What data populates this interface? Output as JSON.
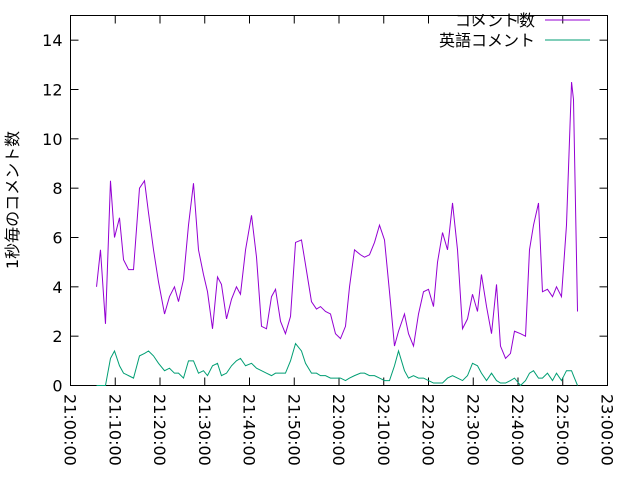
{
  "chart_data": {
    "type": "line",
    "ylabel": "1秒毎のコメント数",
    "x": [
      "21:05:49",
      "21:06:42",
      "21:07:49",
      "21:08:56",
      "21:09:50",
      "21:10:57",
      "21:11:51",
      "21:12:58",
      "21:14:05",
      "21:15:25",
      "21:16:32",
      "21:17:26",
      "21:18:33",
      "21:19:40",
      "21:21:01",
      "21:22:07",
      "21:23:14",
      "21:24:08",
      "21:25:15",
      "21:26:22",
      "21:27:29",
      "21:28:36",
      "21:29:43",
      "21:30:37",
      "21:31:44",
      "21:32:51",
      "21:33:44",
      "21:34:52",
      "21:35:59",
      "21:37:05",
      "21:37:59",
      "21:39:07",
      "21:40:27",
      "21:41:34",
      "21:42:41",
      "21:43:48",
      "21:44:55",
      "21:45:49",
      "21:46:56",
      "21:48:02",
      "21:49:10",
      "21:50:17",
      "21:51:37",
      "21:52:31",
      "21:53:51",
      "21:54:58",
      "21:55:52",
      "21:56:59",
      "21:58:06",
      "21:59:13",
      "22:00:20",
      "22:01:27",
      "22:02:21",
      "22:03:28",
      "22:04:48",
      "22:05:42",
      "22:06:49",
      "22:07:56",
      "22:09:03",
      "22:10:10",
      "22:11:17",
      "22:12:24",
      "22:13:18",
      "22:14:38",
      "22:15:32",
      "22:16:39",
      "22:17:46",
      "22:18:53",
      "22:20:00",
      "22:21:07",
      "22:22:01",
      "22:23:08",
      "22:24:15",
      "22:25:22",
      "22:26:29",
      "22:27:36",
      "22:28:43",
      "22:29:50",
      "22:30:57",
      "22:31:50",
      "22:32:58",
      "22:34:05",
      "22:35:12",
      "22:36:05",
      "22:37:13",
      "22:38:19",
      "22:39:13",
      "22:40:34",
      "22:41:41",
      "22:42:34",
      "22:43:28",
      "22:44:35",
      "22:45:28",
      "22:46:35",
      "22:47:43",
      "22:48:36",
      "22:49:43",
      "22:50:50",
      "22:51:58",
      "22:52:24",
      "22:53:18"
    ],
    "series": [
      {
        "name": "コメント数",
        "color": "#9400d3",
        "values": [
          4.0,
          5.5,
          2.5,
          8.3,
          6.0,
          6.8,
          5.1,
          4.7,
          4.7,
          8.0,
          8.3,
          7.0,
          5.5,
          4.2,
          2.9,
          3.6,
          4.0,
          3.4,
          4.3,
          6.5,
          8.2,
          5.5,
          4.5,
          3.8,
          2.3,
          4.4,
          4.1,
          2.7,
          3.5,
          4.0,
          3.7,
          5.5,
          6.9,
          5.2,
          2.4,
          2.3,
          3.6,
          3.9,
          2.6,
          2.1,
          2.8,
          5.8,
          5.9,
          4.9,
          3.4,
          3.1,
          3.2,
          3.0,
          2.9,
          2.1,
          1.9,
          2.4,
          4.0,
          5.5,
          5.3,
          5.2,
          5.3,
          5.8,
          6.5,
          5.9,
          3.8,
          1.6,
          2.2,
          2.9,
          2.1,
          1.6,
          2.9,
          3.8,
          3.9,
          3.2,
          5.0,
          6.2,
          5.5,
          7.4,
          5.5,
          2.3,
          2.7,
          3.7,
          3.0,
          4.5,
          3.2,
          2.1,
          4.1,
          1.6,
          1.1,
          1.3,
          2.2,
          2.1,
          2.0,
          5.5,
          6.5,
          7.4,
          3.8,
          3.9,
          3.6,
          4.0,
          3.6,
          6.5,
          12.3,
          11.6,
          3.0
        ]
      },
      {
        "name": "英語コメント",
        "color": "#009e73",
        "values": [
          0,
          0,
          0,
          1.1,
          1.4,
          0.8,
          0.5,
          0.4,
          0.3,
          1.2,
          1.3,
          1.4,
          1.2,
          0.9,
          0.6,
          0.7,
          0.5,
          0.5,
          0.3,
          1.0,
          1.0,
          0.5,
          0.6,
          0.4,
          0.8,
          0.9,
          0.4,
          0.5,
          0.8,
          1.0,
          1.1,
          0.8,
          0.9,
          0.7,
          0.6,
          0.5,
          0.4,
          0.5,
          0.5,
          0.5,
          1.0,
          1.7,
          1.4,
          0.9,
          0.5,
          0.5,
          0.4,
          0.4,
          0.3,
          0.3,
          0.3,
          0.2,
          0.3,
          0.4,
          0.5,
          0.5,
          0.4,
          0.4,
          0.3,
          0.2,
          0.2,
          0.8,
          1.4,
          0.6,
          0.3,
          0.4,
          0.3,
          0.3,
          0.2,
          0.1,
          0.1,
          0.1,
          0.3,
          0.4,
          0.3,
          0.2,
          0.4,
          0.9,
          0.8,
          0.5,
          0.2,
          0.5,
          0.2,
          0.1,
          0.1,
          0.2,
          0.3,
          0,
          0.2,
          0.5,
          0.6,
          0.3,
          0.3,
          0.5,
          0.2,
          0.5,
          0.2,
          0.6,
          0.6,
          0.4,
          0
        ]
      }
    ],
    "xlim": [
      "21:00:00",
      "23:00:00"
    ],
    "xticks": [
      "21:00:00",
      "21:10:00",
      "21:20:00",
      "21:30:00",
      "21:40:00",
      "21:50:00",
      "22:00:00",
      "22:10:00",
      "22:20:00",
      "22:30:00",
      "22:40:00",
      "22:50:00",
      "23:00:00"
    ],
    "ylim": [
      0,
      15
    ],
    "yticks": [
      0,
      2,
      4,
      6,
      8,
      10,
      12,
      14
    ],
    "legend": "top-right"
  }
}
